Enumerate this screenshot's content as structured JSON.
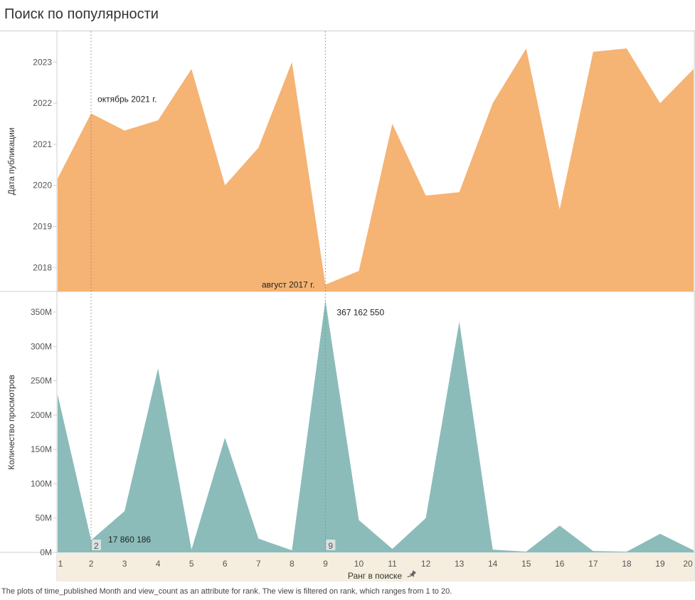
{
  "page": {
    "title": "Поиск по популярности",
    "caption": "The plots of time_published Month and view_count as an attribute for rank. The view is filtered on rank, which ranges from 1 to 20."
  },
  "colors": {
    "top_area": "#F5B374",
    "bottom_area": "#8BBCB9",
    "axis_band": "#F5EEDF",
    "grid_frame": "#CFCFCF",
    "reference_line": "#888888"
  },
  "chart_data": [
    {
      "type": "area",
      "ylabel": "Дата публикации",
      "x": [
        1,
        2,
        3,
        4,
        5,
        6,
        7,
        8,
        9,
        10,
        11,
        12,
        13,
        14,
        15,
        16,
        17,
        18,
        19,
        20
      ],
      "values": [
        "2020-03",
        "2021-10",
        "2021-05",
        "2021-08",
        "2022-11",
        "2020-01",
        "2020-12",
        "2023-01",
        "2017-08",
        "2017-12",
        "2021-07",
        "2019-10",
        "2019-11",
        "2022-01",
        "2023-05",
        "2019-06",
        "2023-04",
        "2023-05",
        "2022-01",
        "2022-11"
      ],
      "y_ticks": [
        "2018",
        "2019",
        "2020",
        "2021",
        "2022",
        "2023"
      ],
      "ylim": [
        "2017-06",
        "2023-10"
      ],
      "annotations": [
        {
          "x": 2,
          "text": "октябрь 2021 г."
        },
        {
          "x": 9,
          "text": "август 2017 г."
        }
      ],
      "grid": false
    },
    {
      "type": "area",
      "ylabel": "Количество просмотров",
      "xlabel": "Ранг в поиске",
      "x": [
        1,
        2,
        3,
        4,
        5,
        6,
        7,
        8,
        9,
        10,
        11,
        12,
        13,
        14,
        15,
        16,
        17,
        18,
        19,
        20
      ],
      "values": [
        230000000,
        17860186,
        60000000,
        268000000,
        4000000,
        167000000,
        20000000,
        3000000,
        367162550,
        47000000,
        5000000,
        50000000,
        336000000,
        4000000,
        1000000,
        39000000,
        2000000,
        1000000,
        27000000,
        3000000
      ],
      "y_ticks": [
        "0M",
        "50M",
        "100M",
        "150M",
        "200M",
        "250M",
        "300M",
        "350M"
      ],
      "y_tick_values": [
        0,
        50000000,
        100000000,
        150000000,
        200000000,
        250000000,
        300000000,
        350000000
      ],
      "ylim": [
        0,
        380000000
      ],
      "x_ticks": [
        "1",
        "2",
        "3",
        "4",
        "5",
        "6",
        "7",
        "8",
        "9",
        "10",
        "11",
        "12",
        "13",
        "14",
        "15",
        "16",
        "17",
        "18",
        "19",
        "20"
      ],
      "annotations": [
        {
          "x": 2,
          "text": "17 860 186"
        },
        {
          "x": 9,
          "text": "367 162 550"
        }
      ],
      "highlighted_ranks": [
        "2",
        "9"
      ],
      "grid": false
    }
  ]
}
